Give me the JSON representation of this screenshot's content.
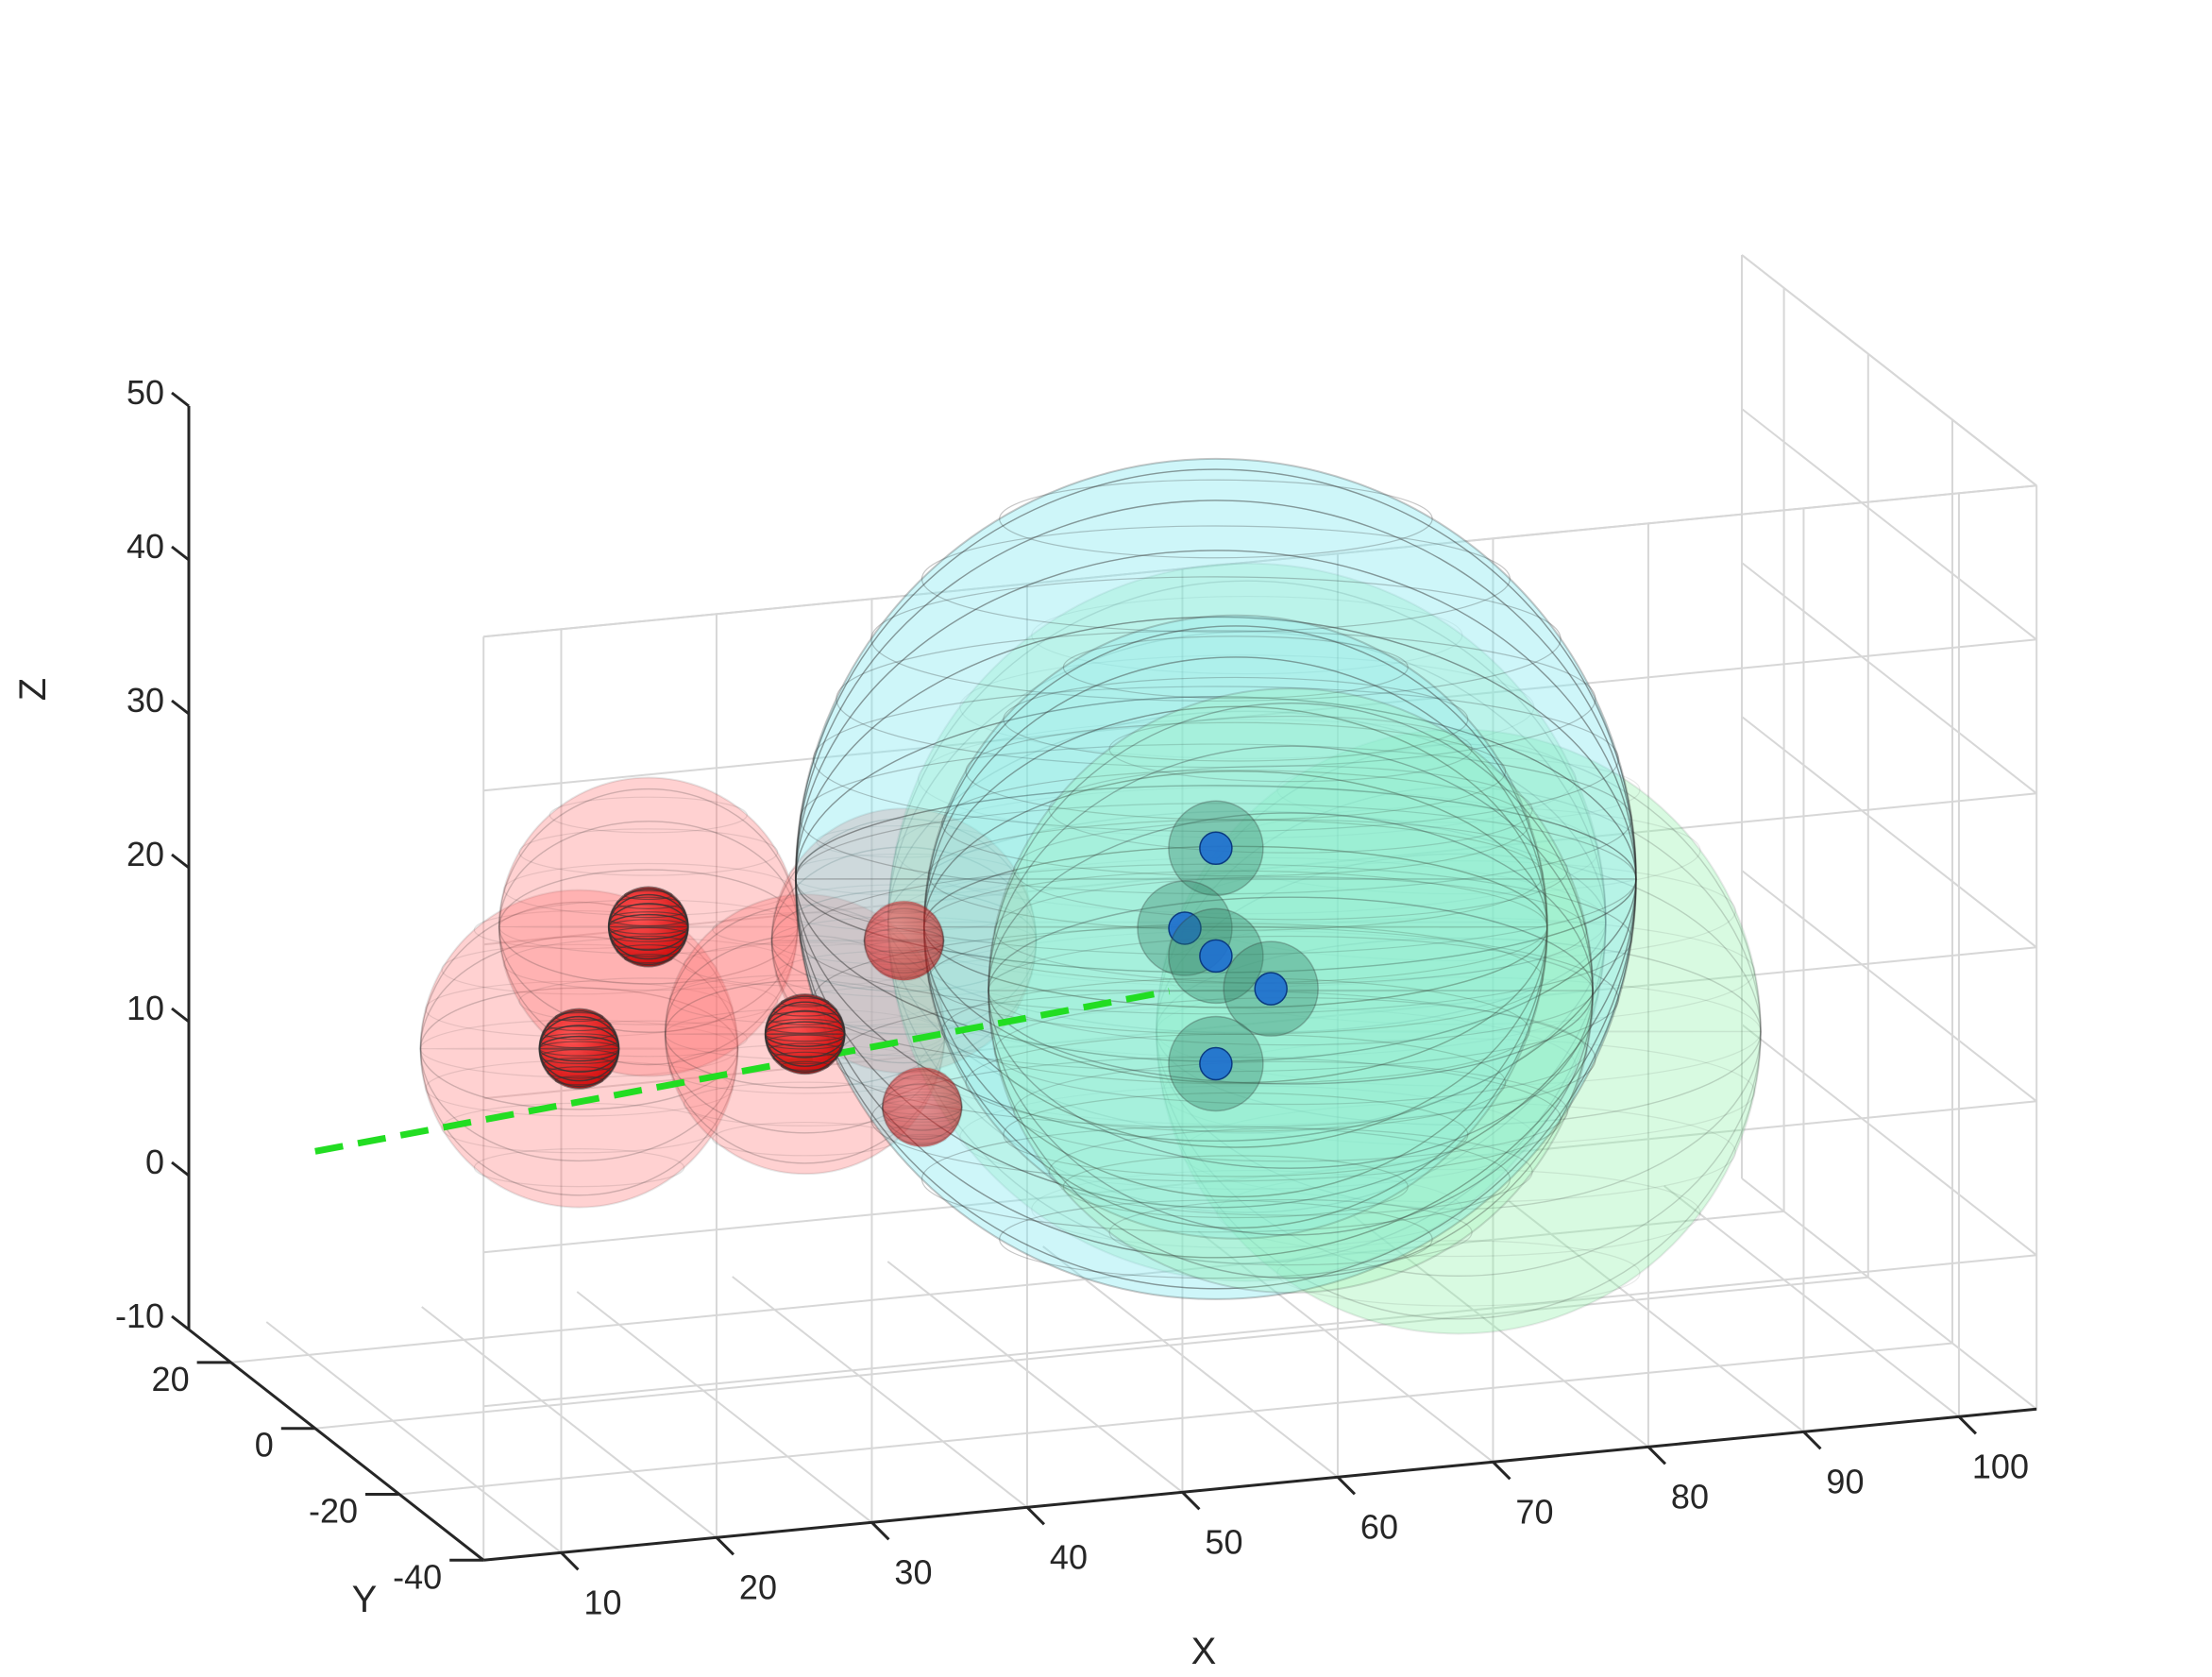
{
  "chart_data": {
    "type": "3d-scatter",
    "title": "",
    "xlabel": "X",
    "ylabel": "Y",
    "zlabel": "Z",
    "xlim": [
      5,
      105
    ],
    "ylim": [
      -40,
      30
    ],
    "zlim": [
      -10,
      50
    ],
    "x_ticks": [
      "10",
      "20",
      "30",
      "40",
      "50",
      "60",
      "70",
      "80",
      "90",
      "100"
    ],
    "y_ticks": [
      "20",
      "0",
      "-20",
      "-40"
    ],
    "z_ticks": [
      "50",
      "40",
      "30",
      "20",
      "10",
      "0",
      "-10"
    ],
    "grid": true,
    "colors": {
      "red_spheres": "#ff7070",
      "red_points": "#cc0000",
      "cyan_spheres": "#7fe8f0",
      "green_spheres": "#8ff0a8",
      "blue_points": "#1e6fd0",
      "path_line": "#22dd22"
    },
    "red_points": [
      {
        "x": 22,
        "y": 0,
        "z": 13
      },
      {
        "x": 27,
        "y": 2,
        "z": 20
      },
      {
        "x": 36,
        "y": -2,
        "z": 13
      },
      {
        "x": 44,
        "y": 4,
        "z": 17
      },
      {
        "x": 43,
        "y": -4,
        "z": 8
      }
    ],
    "blue_points": [
      {
        "x": 63,
        "y": 0,
        "z": 22
      },
      {
        "x": 61,
        "y": 0,
        "z": 17
      },
      {
        "x": 63,
        "y": 0,
        "z": 15
      },
      {
        "x": 66,
        "y": -2,
        "z": 13
      },
      {
        "x": 63,
        "y": 0,
        "z": 8
      }
    ],
    "green_path": [
      {
        "x": 5,
        "y": 0,
        "z": 8
      },
      {
        "x": 60,
        "y": 0,
        "z": 13
      }
    ]
  }
}
